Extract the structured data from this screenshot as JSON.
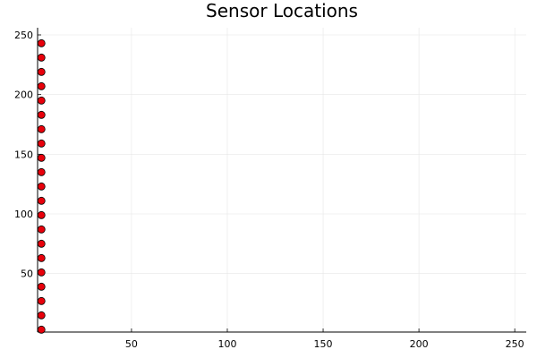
{
  "chart_data": {
    "type": "scatter",
    "title": "Sensor Locations",
    "xlabel": "",
    "ylabel": "",
    "xlim": [
      1,
      256
    ],
    "ylim": [
      1,
      256
    ],
    "xticks": [
      50,
      100,
      150,
      200,
      250
    ],
    "yticks": [
      50,
      100,
      150,
      200,
      250
    ],
    "grid": true,
    "legend": "none",
    "marker_color": "#e8000b",
    "marker_edge_color": "#000000",
    "series": [
      {
        "x": [
          3,
          3,
          3,
          3,
          3,
          3,
          3,
          3,
          3,
          3,
          3,
          3,
          3,
          3,
          3,
          3,
          3,
          3,
          3,
          3,
          3
        ],
        "y": [
          3,
          15,
          27,
          39,
          51,
          63,
          75,
          87,
          99,
          111,
          123,
          135,
          147,
          159,
          171,
          183,
          195,
          207,
          219,
          231,
          243
        ]
      }
    ]
  }
}
